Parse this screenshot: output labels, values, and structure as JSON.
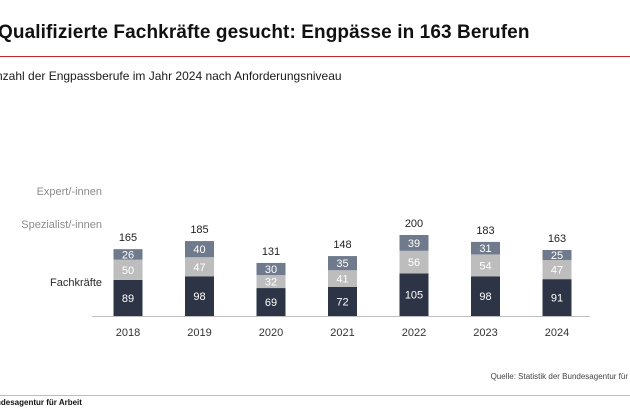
{
  "header": {
    "title": "Qualifizierte Fachkräfte gesucht: Engpässe in 163 Berufen",
    "subtitle": "nzahl der Engpassberufe im Jahr 2024 nach Anforderungsniveau"
  },
  "legend": {
    "expert": "Expert/-innen",
    "spezialist": "Spezialist/-innen",
    "fachkraefte": "Fachkräfte"
  },
  "source": "Quelle: Statistik der Bundesagentur für",
  "footer": "ndesagentur für Arbeit",
  "colors": {
    "fachkraefte": "#2d3446",
    "spezialist": "#bdbdbd",
    "expert": "#6f7a8c",
    "axis": "#bfbfbf",
    "title_rule": "#c3262e"
  },
  "chart_data": {
    "type": "bar",
    "stacked": true,
    "categories": [
      "2018",
      "2019",
      "2020",
      "2021",
      "2022",
      "2023",
      "2024"
    ],
    "series": [
      {
        "name": "Fachkräfte",
        "values": [
          89,
          98,
          69,
          72,
          105,
          98,
          91
        ]
      },
      {
        "name": "Spezialist/-innen",
        "values": [
          50,
          47,
          32,
          41,
          56,
          54,
          47
        ]
      },
      {
        "name": "Expert/-innen",
        "values": [
          26,
          40,
          30,
          35,
          39,
          31,
          25
        ]
      }
    ],
    "totals": [
      165,
      185,
      131,
      148,
      200,
      183,
      163
    ],
    "title": "",
    "xlabel": "",
    "ylabel": "",
    "ylim": [
      0,
      200
    ],
    "grid": false,
    "legend_position": "left"
  }
}
